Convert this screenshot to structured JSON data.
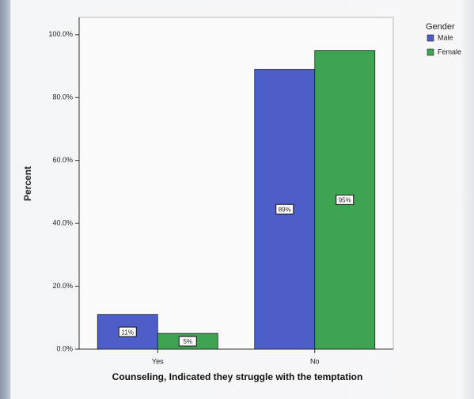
{
  "chart_data": {
    "type": "bar",
    "x_label": "Counseling, Indicated they struggle with the temptation",
    "y_label": "Percent",
    "categories": [
      "Yes",
      "No"
    ],
    "series": [
      {
        "name": "Male",
        "color": "#4d5ec8",
        "values": [
          11,
          89
        ],
        "value_labels": [
          "11%",
          "89%"
        ]
      },
      {
        "name": "Female",
        "color": "#3ea452",
        "values": [
          5,
          95
        ],
        "value_labels": [
          "5%",
          "95%"
        ]
      }
    ],
    "legend_title": "Gender",
    "ylim": [
      0,
      105.5
    ],
    "yticks": [
      {
        "value": 0,
        "label": "0.0%"
      },
      {
        "value": 20,
        "label": "20.0%"
      },
      {
        "value": 40,
        "label": "40.0%"
      },
      {
        "value": 60,
        "label": "60.0%"
      },
      {
        "value": 80,
        "label": "80.0%"
      },
      {
        "value": 100,
        "label": "100.0%"
      }
    ]
  }
}
